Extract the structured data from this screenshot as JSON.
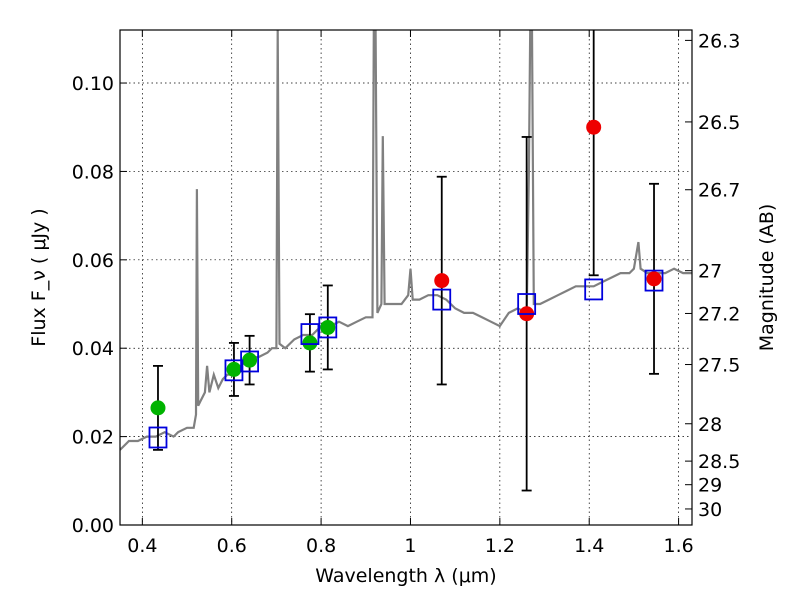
{
  "chart_data": {
    "type": "scatter",
    "xlabel": "Wavelength  λ (μm)",
    "ylabel": "Flux  F_ν  ( μJy )",
    "y2label": "Magnitude (AB)",
    "xlim": [
      0.35,
      1.63
    ],
    "ylim": [
      0.0,
      0.112
    ],
    "grid": true,
    "x_ticks": [
      {
        "v": 0.4,
        "label": "0.4"
      },
      {
        "v": 0.6,
        "label": "0.6"
      },
      {
        "v": 0.8,
        "label": "0.8"
      },
      {
        "v": 1.0,
        "label": "1"
      },
      {
        "v": 1.2,
        "label": "1.2"
      },
      {
        "v": 1.4,
        "label": "1.4"
      },
      {
        "v": 1.6,
        "label": "1.6"
      }
    ],
    "y_ticks": [
      {
        "v": 0.0,
        "label": "0.00"
      },
      {
        "v": 0.02,
        "label": "0.02"
      },
      {
        "v": 0.04,
        "label": "0.04"
      },
      {
        "v": 0.06,
        "label": "0.06"
      },
      {
        "v": 0.08,
        "label": "0.08"
      },
      {
        "v": 0.1,
        "label": "0.10"
      }
    ],
    "y2_ticks": [
      {
        "mag": 26.3,
        "label": "26.3"
      },
      {
        "mag": 26.5,
        "label": "26.5"
      },
      {
        "mag": 26.7,
        "label": "26.7"
      },
      {
        "mag": 27.0,
        "label": "27"
      },
      {
        "mag": 27.2,
        "label": "27.2"
      },
      {
        "mag": 27.5,
        "label": "27.5"
      },
      {
        "mag": 28.0,
        "label": "28"
      },
      {
        "mag": 28.5,
        "label": "28.5"
      },
      {
        "mag": 29.0,
        "label": "29"
      },
      {
        "mag": 30.0,
        "label": "30"
      }
    ],
    "model_spectrum": {
      "color": "#808080",
      "points": [
        [
          0.35,
          0.017
        ],
        [
          0.37,
          0.019
        ],
        [
          0.39,
          0.019
        ],
        [
          0.41,
          0.02
        ],
        [
          0.43,
          0.02
        ],
        [
          0.45,
          0.021
        ],
        [
          0.47,
          0.02
        ],
        [
          0.48,
          0.021
        ],
        [
          0.5,
          0.022
        ],
        [
          0.515,
          0.022
        ],
        [
          0.52,
          0.025
        ],
        [
          0.522,
          0.076
        ],
        [
          0.525,
          0.027
        ],
        [
          0.53,
          0.028
        ],
        [
          0.54,
          0.03
        ],
        [
          0.545,
          0.036
        ],
        [
          0.55,
          0.03
        ],
        [
          0.56,
          0.034
        ],
        [
          0.57,
          0.031
        ],
        [
          0.58,
          0.033
        ],
        [
          0.59,
          0.034
        ],
        [
          0.6,
          0.034
        ],
        [
          0.62,
          0.036
        ],
        [
          0.63,
          0.037
        ],
        [
          0.65,
          0.038
        ],
        [
          0.66,
          0.038
        ],
        [
          0.68,
          0.039
        ],
        [
          0.69,
          0.04
        ],
        [
          0.7,
          0.04
        ],
        [
          0.703,
          0.112
        ],
        [
          0.707,
          0.041
        ],
        [
          0.72,
          0.04
        ],
        [
          0.74,
          0.042
        ],
        [
          0.76,
          0.043
        ],
        [
          0.78,
          0.043
        ],
        [
          0.8,
          0.045
        ],
        [
          0.82,
          0.045
        ],
        [
          0.84,
          0.046
        ],
        [
          0.86,
          0.045
        ],
        [
          0.88,
          0.046
        ],
        [
          0.9,
          0.047
        ],
        [
          0.915,
          0.047
        ],
        [
          0.918,
          0.112
        ],
        [
          0.922,
          0.112
        ],
        [
          0.926,
          0.048
        ],
        [
          0.935,
          0.05
        ],
        [
          0.938,
          0.088
        ],
        [
          0.942,
          0.05
        ],
        [
          0.96,
          0.05
        ],
        [
          0.98,
          0.05
        ],
        [
          0.995,
          0.052
        ],
        [
          1.0,
          0.058
        ],
        [
          1.005,
          0.051
        ],
        [
          1.02,
          0.051
        ],
        [
          1.04,
          0.052
        ],
        [
          1.06,
          0.052
        ],
        [
          1.08,
          0.051
        ],
        [
          1.1,
          0.049
        ],
        [
          1.12,
          0.048
        ],
        [
          1.14,
          0.048
        ],
        [
          1.16,
          0.047
        ],
        [
          1.18,
          0.046
        ],
        [
          1.2,
          0.045
        ],
        [
          1.22,
          0.048
        ],
        [
          1.24,
          0.049
        ],
        [
          1.26,
          0.048
        ],
        [
          1.265,
          0.08
        ],
        [
          1.268,
          0.112
        ],
        [
          1.272,
          0.112
        ],
        [
          1.276,
          0.05
        ],
        [
          1.29,
          0.05
        ],
        [
          1.31,
          0.051
        ],
        [
          1.33,
          0.052
        ],
        [
          1.35,
          0.053
        ],
        [
          1.37,
          0.054
        ],
        [
          1.39,
          0.054
        ],
        [
          1.41,
          0.054
        ],
        [
          1.43,
          0.055
        ],
        [
          1.45,
          0.056
        ],
        [
          1.47,
          0.057
        ],
        [
          1.49,
          0.057
        ],
        [
          1.5,
          0.058
        ],
        [
          1.51,
          0.064
        ],
        [
          1.515,
          0.058
        ],
        [
          1.53,
          0.057
        ],
        [
          1.55,
          0.057
        ],
        [
          1.57,
          0.057
        ],
        [
          1.59,
          0.058
        ],
        [
          1.61,
          0.057
        ],
        [
          1.63,
          0.057
        ]
      ]
    },
    "series": [
      {
        "marker": "circle",
        "color": "#00b300",
        "points": [
          {
            "x": 0.435,
            "y": 0.0265,
            "err": 0.0095
          },
          {
            "x": 0.605,
            "y": 0.0352,
            "err": 0.006
          },
          {
            "x": 0.64,
            "y": 0.0373,
            "err": 0.0055
          },
          {
            "x": 0.775,
            "y": 0.0412,
            "err": 0.0065
          },
          {
            "x": 0.815,
            "y": 0.0447,
            "err": 0.0095
          }
        ]
      },
      {
        "marker": "circle",
        "color": "#ee0000",
        "points": [
          {
            "x": 1.07,
            "y": 0.0553,
            "err": 0.0235
          },
          {
            "x": 1.26,
            "y": 0.0478,
            "err": 0.04
          },
          {
            "x": 1.41,
            "y": 0.09,
            "err": 0.0335
          },
          {
            "x": 1.545,
            "y": 0.0557,
            "err": 0.0215
          }
        ]
      },
      {
        "marker": "open-square",
        "color": "#0000dd",
        "points": [
          {
            "x": 0.435,
            "y": 0.0198
          },
          {
            "x": 0.605,
            "y": 0.035
          },
          {
            "x": 0.64,
            "y": 0.037
          },
          {
            "x": 0.775,
            "y": 0.0432
          },
          {
            "x": 0.815,
            "y": 0.0447
          },
          {
            "x": 1.07,
            "y": 0.051
          },
          {
            "x": 1.26,
            "y": 0.05
          },
          {
            "x": 1.41,
            "y": 0.0533
          },
          {
            "x": 1.545,
            "y": 0.0553
          }
        ]
      }
    ]
  }
}
